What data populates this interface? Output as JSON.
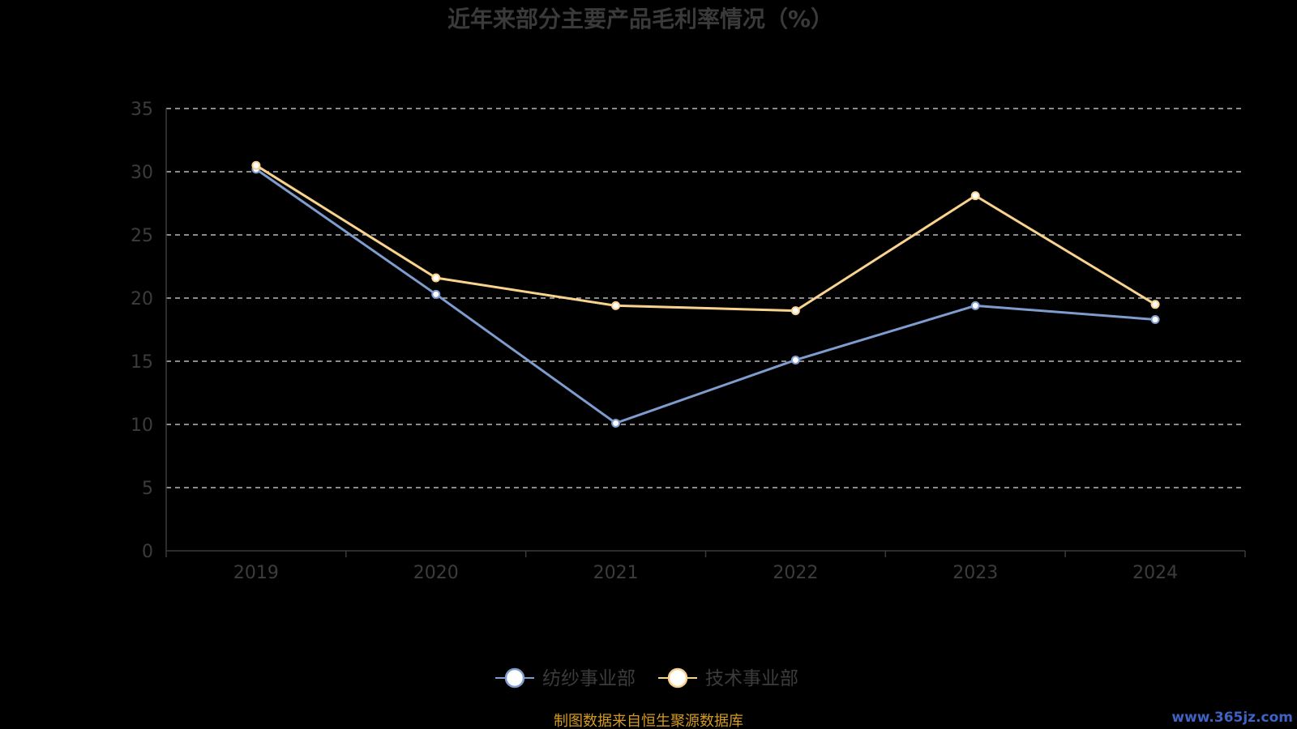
{
  "chart_data": {
    "type": "line",
    "title": "近年来部分主要产品毛利率情况（%）",
    "categories": [
      "2019",
      "2020",
      "2021",
      "2022",
      "2023",
      "2024"
    ],
    "y_ticks": [
      "0",
      "5",
      "10",
      "15",
      "20",
      "25",
      "30",
      "35"
    ],
    "ylim": [
      0,
      35
    ],
    "grid": true,
    "legend_position": "bottom-center",
    "series": [
      {
        "name": "纺纱事业部",
        "color": "#7f9ccf",
        "values": [
          30.2,
          20.3,
          10.1,
          15.1,
          19.4,
          18.3
        ]
      },
      {
        "name": "技术事业部",
        "color": "#f9d38e",
        "values": [
          30.5,
          21.6,
          19.4,
          19.0,
          28.1,
          19.5
        ]
      }
    ]
  },
  "footer": {
    "source": "制图数据来自恒生聚源数据库",
    "watermark": "www.365jz.com"
  },
  "colors": {
    "background": "#000000",
    "title": "#3a3a3a",
    "axis_text": "#3c3c3c",
    "axis_line": "#3a3a3a",
    "grid": "#dddddd",
    "source": "#d39a1e",
    "watermark": "#3f63c5"
  }
}
